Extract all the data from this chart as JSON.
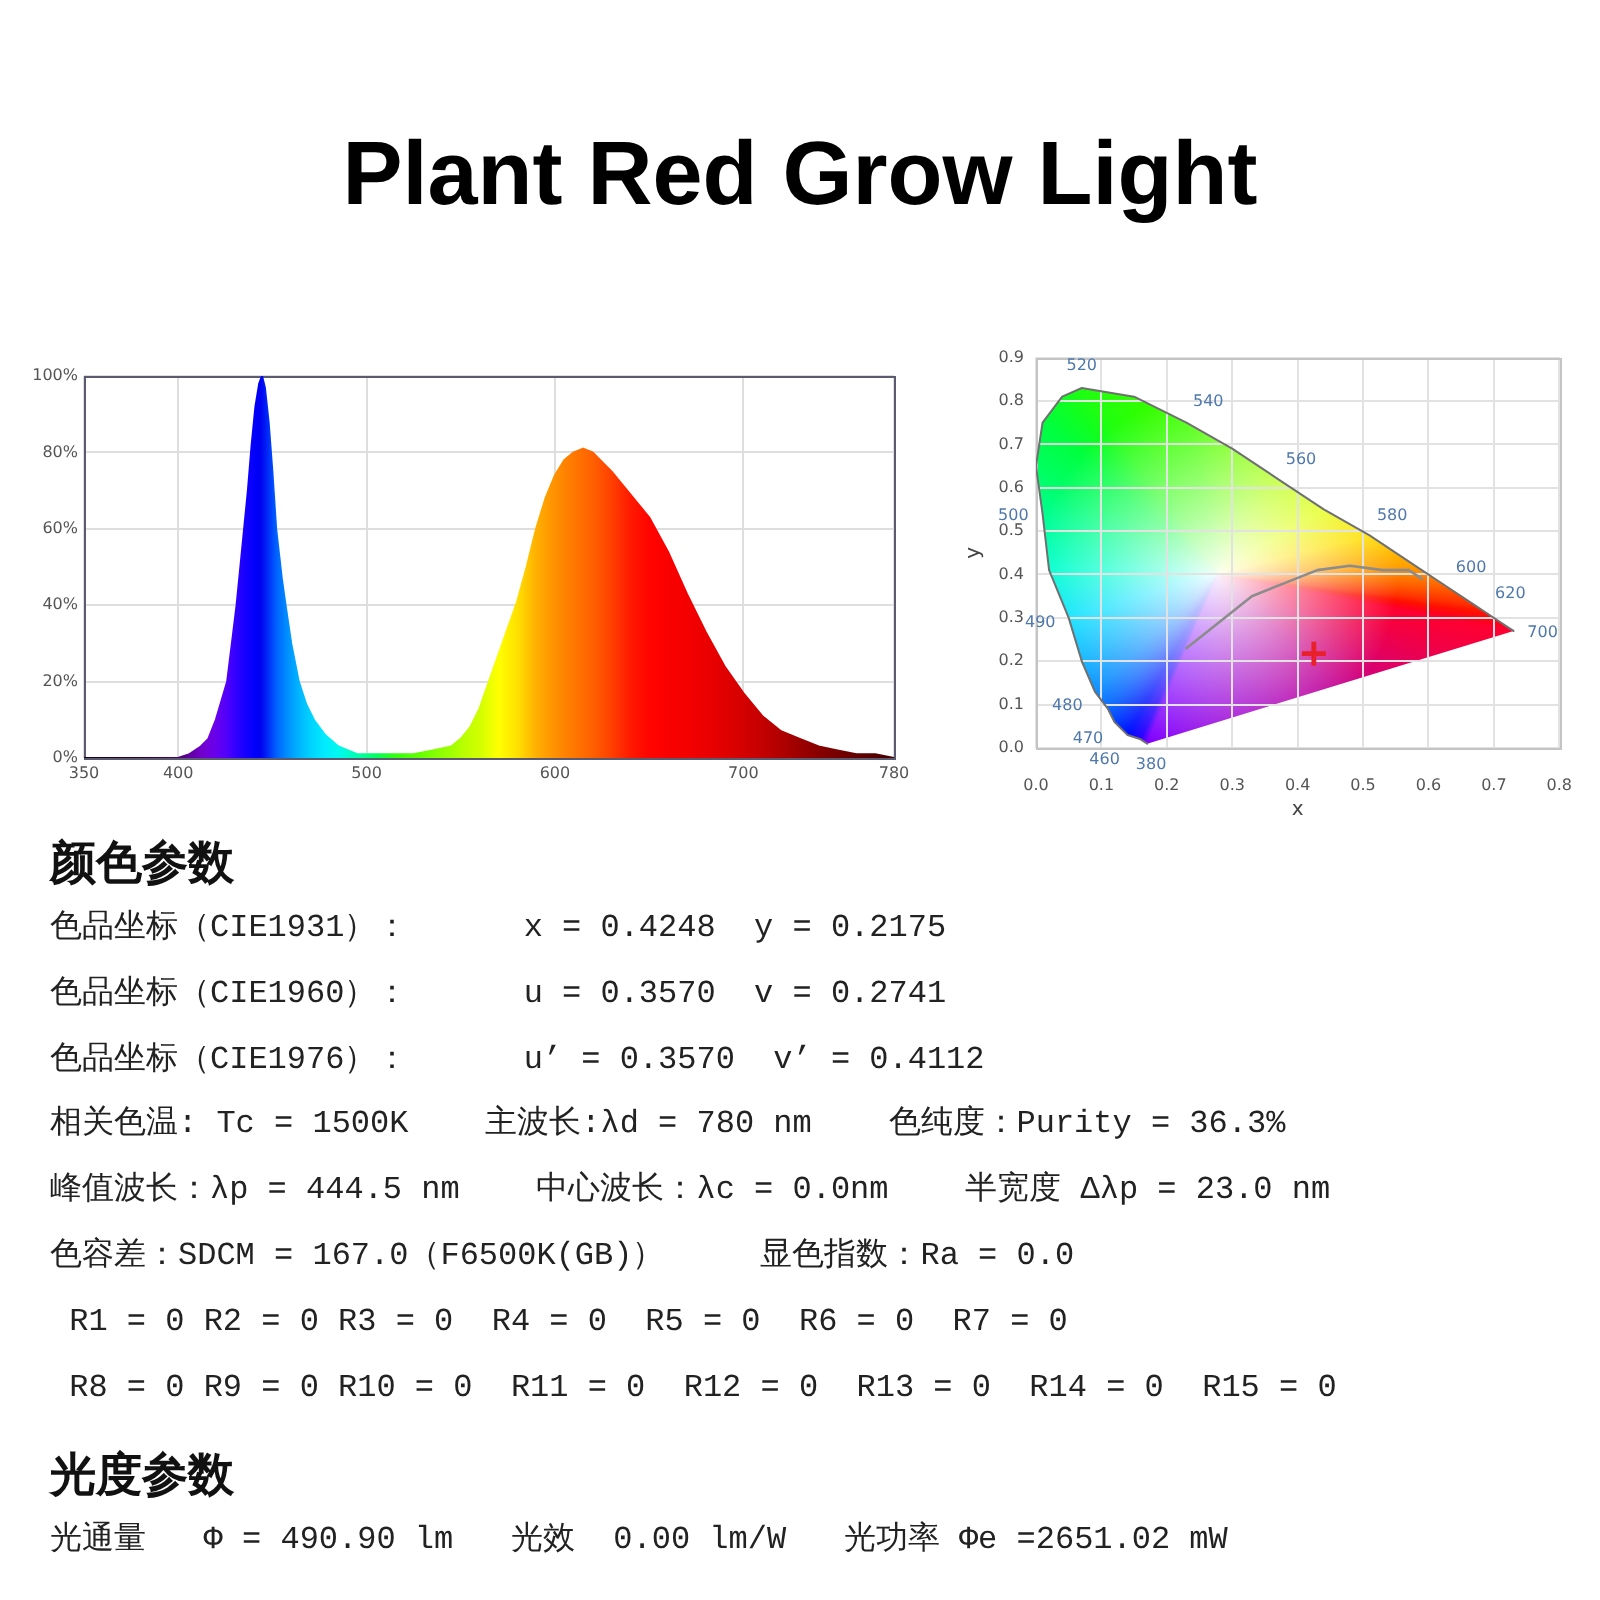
{
  "chart_data": [
    {
      "type": "area",
      "title": "Plant Red Grow Light",
      "x": [
        350,
        380,
        400,
        406,
        412,
        416,
        420,
        423,
        426,
        429,
        431,
        433,
        435,
        437,
        439,
        441,
        443,
        444.5,
        446,
        448,
        450,
        452,
        455,
        457,
        460,
        464,
        468,
        472,
        478,
        485,
        495,
        505,
        515,
        525,
        535,
        545,
        550,
        555,
        560,
        565,
        570,
        575,
        580,
        585,
        590,
        595,
        600,
        605,
        610,
        615,
        620,
        630,
        640,
        650,
        660,
        670,
        680,
        690,
        700,
        710,
        720,
        730,
        740,
        750,
        760,
        770,
        780
      ],
      "values": [
        0,
        0,
        0,
        1,
        3,
        5,
        10,
        15,
        20,
        32,
        40,
        50,
        60,
        70,
        82,
        92,
        98,
        100,
        97,
        88,
        75,
        60,
        47,
        40,
        30,
        20,
        14,
        10,
        6,
        3,
        1,
        1,
        1,
        1,
        2,
        3,
        5,
        8,
        13,
        20,
        27,
        34,
        41,
        50,
        60,
        68,
        74,
        78,
        80,
        81,
        80,
        75,
        69,
        63,
        54,
        43,
        33,
        24,
        17,
        11,
        7,
        5,
        3,
        2,
        1,
        1,
        0
      ],
      "colors": [
        "#1a0010",
        "#2a0030",
        "#4a0068",
        "#6000a0",
        "#7000c8",
        "#7000dc",
        "#6800ec",
        "#5c00f4",
        "#5000fa",
        "#3c00ff",
        "#3000ff",
        "#2400ff",
        "#1800ff",
        "#1000ff",
        "#0800ff",
        "#0000fa",
        "#0000f4",
        "#0008f0",
        "#0018f4",
        "#0030f8",
        "#0048fc",
        "#0060ff",
        "#0078ff",
        "#0088ff",
        "#009cff",
        "#00b4ff",
        "#00c8ff",
        "#00d8ff",
        "#00ecff",
        "#00f8f0",
        "#00ffb0",
        "#00ff60",
        "#30ff10",
        "#58ff00",
        "#80ff00",
        "#a0ff00",
        "#b4ff00",
        "#c4ff00",
        "#d0ff00",
        "#e8ff00",
        "#ffff00",
        "#fff000",
        "#ffe000",
        "#ffc800",
        "#ffb000",
        "#ffa000",
        "#ff9000",
        "#ff8400",
        "#ff7800",
        "#ff6c00",
        "#ff6000",
        "#ff4000",
        "#ff1a00",
        "#ff0400",
        "#fa0000",
        "#f40000",
        "#ec0000",
        "#e00000",
        "#d40000",
        "#c40000",
        "#b00000",
        "#9c0000",
        "#880000",
        "#760000",
        "#640000",
        "#540000",
        "#440000"
      ],
      "xlim": [
        350,
        780
      ],
      "xticks": [
        350,
        400,
        500,
        600,
        700,
        780
      ],
      "ylim": [
        0,
        100
      ],
      "yticks": [
        {
          "value": 0,
          "label": "0%"
        },
        {
          "value": 20,
          "label": "20%"
        },
        {
          "value": 40,
          "label": "40%"
        },
        {
          "value": 60,
          "label": "60%"
        },
        {
          "value": 80,
          "label": "80%"
        },
        {
          "value": 100,
          "label": "100%"
        }
      ],
      "grid": true
    },
    {
      "type": "line",
      "xlabel": "x",
      "ylabel": "y",
      "series": [
        {
          "type": "line",
          "x": [
            0.17,
            0.16,
            0.14,
            0.12,
            0.11,
            0.09,
            0.07,
            0.05,
            0.02,
            0.01,
            0.0,
            0.01,
            0.04,
            0.07,
            0.15,
            0.23,
            0.3,
            0.37,
            0.44,
            0.51,
            0.58,
            0.63,
            0.67,
            0.69,
            0.72,
            0.73
          ],
          "values": [
            0.01,
            0.02,
            0.03,
            0.06,
            0.09,
            0.13,
            0.2,
            0.3,
            0.41,
            0.54,
            0.65,
            0.75,
            0.81,
            0.83,
            0.81,
            0.75,
            0.69,
            0.62,
            0.55,
            0.49,
            0.42,
            0.37,
            0.33,
            0.31,
            0.28,
            0.27
          ],
          "color": "#707070",
          "colors": [
            "#8000ff",
            "#2800ff",
            "#0010ff",
            "#0040ff",
            "#0060ff",
            "#0088ff",
            "#00b0ff",
            "#00e0ff",
            "#00ffd0",
            "#00ff90",
            "#00ff60",
            "#00ff40",
            "#10ff20",
            "#20ff10",
            "#30ff00",
            "#40ff00",
            "#70ff00",
            "#b0ff00",
            "#e0ff00",
            "#ffe000",
            "#ffa000",
            "#ff6000",
            "#ff3000",
            "#ff1000",
            "#ff0020",
            "#ff0030"
          ]
        },
        {
          "type": "line",
          "x": [
            0.23,
            0.28,
            0.33,
            0.38,
            0.43,
            0.48,
            0.53,
            0.57,
            0.59
          ],
          "values": [
            0.23,
            0.29,
            0.35,
            0.38,
            0.41,
            0.42,
            0.41,
            0.41,
            0.39
          ],
          "color": "#8c8c8c"
        },
        {
          "type": "scatter",
          "x": [
            0.4248
          ],
          "values": [
            0.2175
          ],
          "color": "#e8202a",
          "marker": "cross"
        }
      ],
      "xlim": [
        0,
        0.8
      ],
      "xticks": [
        {
          "value": 0,
          "label": "0.0"
        },
        0.1,
        0.2,
        0.3,
        0.4,
        0.5,
        0.6,
        0.7,
        0.8
      ],
      "ylim": [
        0,
        0.9
      ],
      "yticks": [
        {
          "value": 0,
          "label": "0.0"
        },
        0.1,
        0.2,
        0.3,
        0.4,
        0.5,
        0.6,
        0.7,
        0.8,
        0.9
      ],
      "grid": true,
      "annotations": [
        {
          "text": "380",
          "x": 0.17,
          "y": 0.01
        },
        {
          "text": "460",
          "x": 0.14,
          "y": 0.03
        },
        {
          "text": "470",
          "x": 0.12,
          "y": 0.06
        },
        {
          "text": "480",
          "x": 0.09,
          "y": 0.13
        },
        {
          "text": "490",
          "x": 0.05,
          "y": 0.3
        },
        {
          "text": "500",
          "x": 0.01,
          "y": 0.54
        },
        {
          "text": "520",
          "x": 0.07,
          "y": 0.83
        },
        {
          "text": "540",
          "x": 0.23,
          "y": 0.75
        },
        {
          "text": "560",
          "x": 0.37,
          "y": 0.62
        },
        {
          "text": "580",
          "x": 0.51,
          "y": 0.49
        },
        {
          "text": "600",
          "x": 0.63,
          "y": 0.37
        },
        {
          "text": "620",
          "x": 0.69,
          "y": 0.31
        },
        {
          "text": "700",
          "x": 0.73,
          "y": 0.27
        }
      ]
    },
    {
      "type": "other",
      "title": "颜色参数",
      "annotations": [
        "色品坐标（CIE1931）：      x = 0.4248  y = 0.2175",
        "色品坐标（CIE1960）：      u = 0.3570  v = 0.2741",
        "色品坐标（CIE1976）：      u’ = 0.3570  v’ = 0.4112",
        "相关色温: Tc = 1500K    主波长:λd = 780 nm    色纯度：Purity = 36.3%",
        "峰值波长：λp = 444.5 nm    中心波长：λc = 0.0nm    半宽度 Δλp = 23.0 nm",
        "色容差：SDCM = 167.0（F6500K(GB)）     显色指数：Ra = 0.0",
        " R1 = 0 R2 = 0 R3 = 0  R4 = 0  R5 = 0  R6 = 0  R7 = 0",
        " R8 = 0 R9 = 0 R10 = 0  R11 = 0  R12 = 0  R13 = 0  R14 = 0  R15 = 0"
      ]
    },
    {
      "type": "other",
      "title": "光度参数",
      "annotations": [
        "光通量   Φ = 490.90 lm   光效  0.00 lm/W   光功率 Φe =2651.02 mW"
      ]
    }
  ]
}
